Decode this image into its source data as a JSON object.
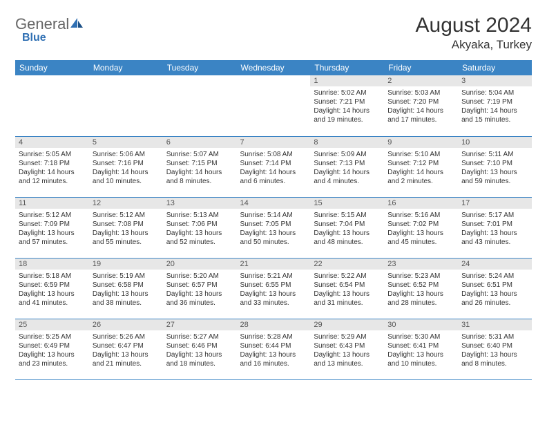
{
  "logo": {
    "general": "General",
    "blue": "Blue"
  },
  "title": "August 2024",
  "location": "Akyaka, Turkey",
  "colors": {
    "header_bg": "#3b84c4",
    "header_fg": "#ffffff",
    "daynum_bg": "#e7e7e7",
    "border": "#3b84c4",
    "logo_blue": "#2f6fb3"
  },
  "day_headers": [
    "Sunday",
    "Monday",
    "Tuesday",
    "Wednesday",
    "Thursday",
    "Friday",
    "Saturday"
  ],
  "weeks": [
    [
      {
        "n": "",
        "sr": "",
        "ss": "",
        "dl": ""
      },
      {
        "n": "",
        "sr": "",
        "ss": "",
        "dl": ""
      },
      {
        "n": "",
        "sr": "",
        "ss": "",
        "dl": ""
      },
      {
        "n": "",
        "sr": "",
        "ss": "",
        "dl": ""
      },
      {
        "n": "1",
        "sr": "Sunrise: 5:02 AM",
        "ss": "Sunset: 7:21 PM",
        "dl": "Daylight: 14 hours and 19 minutes."
      },
      {
        "n": "2",
        "sr": "Sunrise: 5:03 AM",
        "ss": "Sunset: 7:20 PM",
        "dl": "Daylight: 14 hours and 17 minutes."
      },
      {
        "n": "3",
        "sr": "Sunrise: 5:04 AM",
        "ss": "Sunset: 7:19 PM",
        "dl": "Daylight: 14 hours and 15 minutes."
      }
    ],
    [
      {
        "n": "4",
        "sr": "Sunrise: 5:05 AM",
        "ss": "Sunset: 7:18 PM",
        "dl": "Daylight: 14 hours and 12 minutes."
      },
      {
        "n": "5",
        "sr": "Sunrise: 5:06 AM",
        "ss": "Sunset: 7:16 PM",
        "dl": "Daylight: 14 hours and 10 minutes."
      },
      {
        "n": "6",
        "sr": "Sunrise: 5:07 AM",
        "ss": "Sunset: 7:15 PM",
        "dl": "Daylight: 14 hours and 8 minutes."
      },
      {
        "n": "7",
        "sr": "Sunrise: 5:08 AM",
        "ss": "Sunset: 7:14 PM",
        "dl": "Daylight: 14 hours and 6 minutes."
      },
      {
        "n": "8",
        "sr": "Sunrise: 5:09 AM",
        "ss": "Sunset: 7:13 PM",
        "dl": "Daylight: 14 hours and 4 minutes."
      },
      {
        "n": "9",
        "sr": "Sunrise: 5:10 AM",
        "ss": "Sunset: 7:12 PM",
        "dl": "Daylight: 14 hours and 2 minutes."
      },
      {
        "n": "10",
        "sr": "Sunrise: 5:11 AM",
        "ss": "Sunset: 7:10 PM",
        "dl": "Daylight: 13 hours and 59 minutes."
      }
    ],
    [
      {
        "n": "11",
        "sr": "Sunrise: 5:12 AM",
        "ss": "Sunset: 7:09 PM",
        "dl": "Daylight: 13 hours and 57 minutes."
      },
      {
        "n": "12",
        "sr": "Sunrise: 5:12 AM",
        "ss": "Sunset: 7:08 PM",
        "dl": "Daylight: 13 hours and 55 minutes."
      },
      {
        "n": "13",
        "sr": "Sunrise: 5:13 AM",
        "ss": "Sunset: 7:06 PM",
        "dl": "Daylight: 13 hours and 52 minutes."
      },
      {
        "n": "14",
        "sr": "Sunrise: 5:14 AM",
        "ss": "Sunset: 7:05 PM",
        "dl": "Daylight: 13 hours and 50 minutes."
      },
      {
        "n": "15",
        "sr": "Sunrise: 5:15 AM",
        "ss": "Sunset: 7:04 PM",
        "dl": "Daylight: 13 hours and 48 minutes."
      },
      {
        "n": "16",
        "sr": "Sunrise: 5:16 AM",
        "ss": "Sunset: 7:02 PM",
        "dl": "Daylight: 13 hours and 45 minutes."
      },
      {
        "n": "17",
        "sr": "Sunrise: 5:17 AM",
        "ss": "Sunset: 7:01 PM",
        "dl": "Daylight: 13 hours and 43 minutes."
      }
    ],
    [
      {
        "n": "18",
        "sr": "Sunrise: 5:18 AM",
        "ss": "Sunset: 6:59 PM",
        "dl": "Daylight: 13 hours and 41 minutes."
      },
      {
        "n": "19",
        "sr": "Sunrise: 5:19 AM",
        "ss": "Sunset: 6:58 PM",
        "dl": "Daylight: 13 hours and 38 minutes."
      },
      {
        "n": "20",
        "sr": "Sunrise: 5:20 AM",
        "ss": "Sunset: 6:57 PM",
        "dl": "Daylight: 13 hours and 36 minutes."
      },
      {
        "n": "21",
        "sr": "Sunrise: 5:21 AM",
        "ss": "Sunset: 6:55 PM",
        "dl": "Daylight: 13 hours and 33 minutes."
      },
      {
        "n": "22",
        "sr": "Sunrise: 5:22 AM",
        "ss": "Sunset: 6:54 PM",
        "dl": "Daylight: 13 hours and 31 minutes."
      },
      {
        "n": "23",
        "sr": "Sunrise: 5:23 AM",
        "ss": "Sunset: 6:52 PM",
        "dl": "Daylight: 13 hours and 28 minutes."
      },
      {
        "n": "24",
        "sr": "Sunrise: 5:24 AM",
        "ss": "Sunset: 6:51 PM",
        "dl": "Daylight: 13 hours and 26 minutes."
      }
    ],
    [
      {
        "n": "25",
        "sr": "Sunrise: 5:25 AM",
        "ss": "Sunset: 6:49 PM",
        "dl": "Daylight: 13 hours and 23 minutes."
      },
      {
        "n": "26",
        "sr": "Sunrise: 5:26 AM",
        "ss": "Sunset: 6:47 PM",
        "dl": "Daylight: 13 hours and 21 minutes."
      },
      {
        "n": "27",
        "sr": "Sunrise: 5:27 AM",
        "ss": "Sunset: 6:46 PM",
        "dl": "Daylight: 13 hours and 18 minutes."
      },
      {
        "n": "28",
        "sr": "Sunrise: 5:28 AM",
        "ss": "Sunset: 6:44 PM",
        "dl": "Daylight: 13 hours and 16 minutes."
      },
      {
        "n": "29",
        "sr": "Sunrise: 5:29 AM",
        "ss": "Sunset: 6:43 PM",
        "dl": "Daylight: 13 hours and 13 minutes."
      },
      {
        "n": "30",
        "sr": "Sunrise: 5:30 AM",
        "ss": "Sunset: 6:41 PM",
        "dl": "Daylight: 13 hours and 10 minutes."
      },
      {
        "n": "31",
        "sr": "Sunrise: 5:31 AM",
        "ss": "Sunset: 6:40 PM",
        "dl": "Daylight: 13 hours and 8 minutes."
      }
    ]
  ]
}
